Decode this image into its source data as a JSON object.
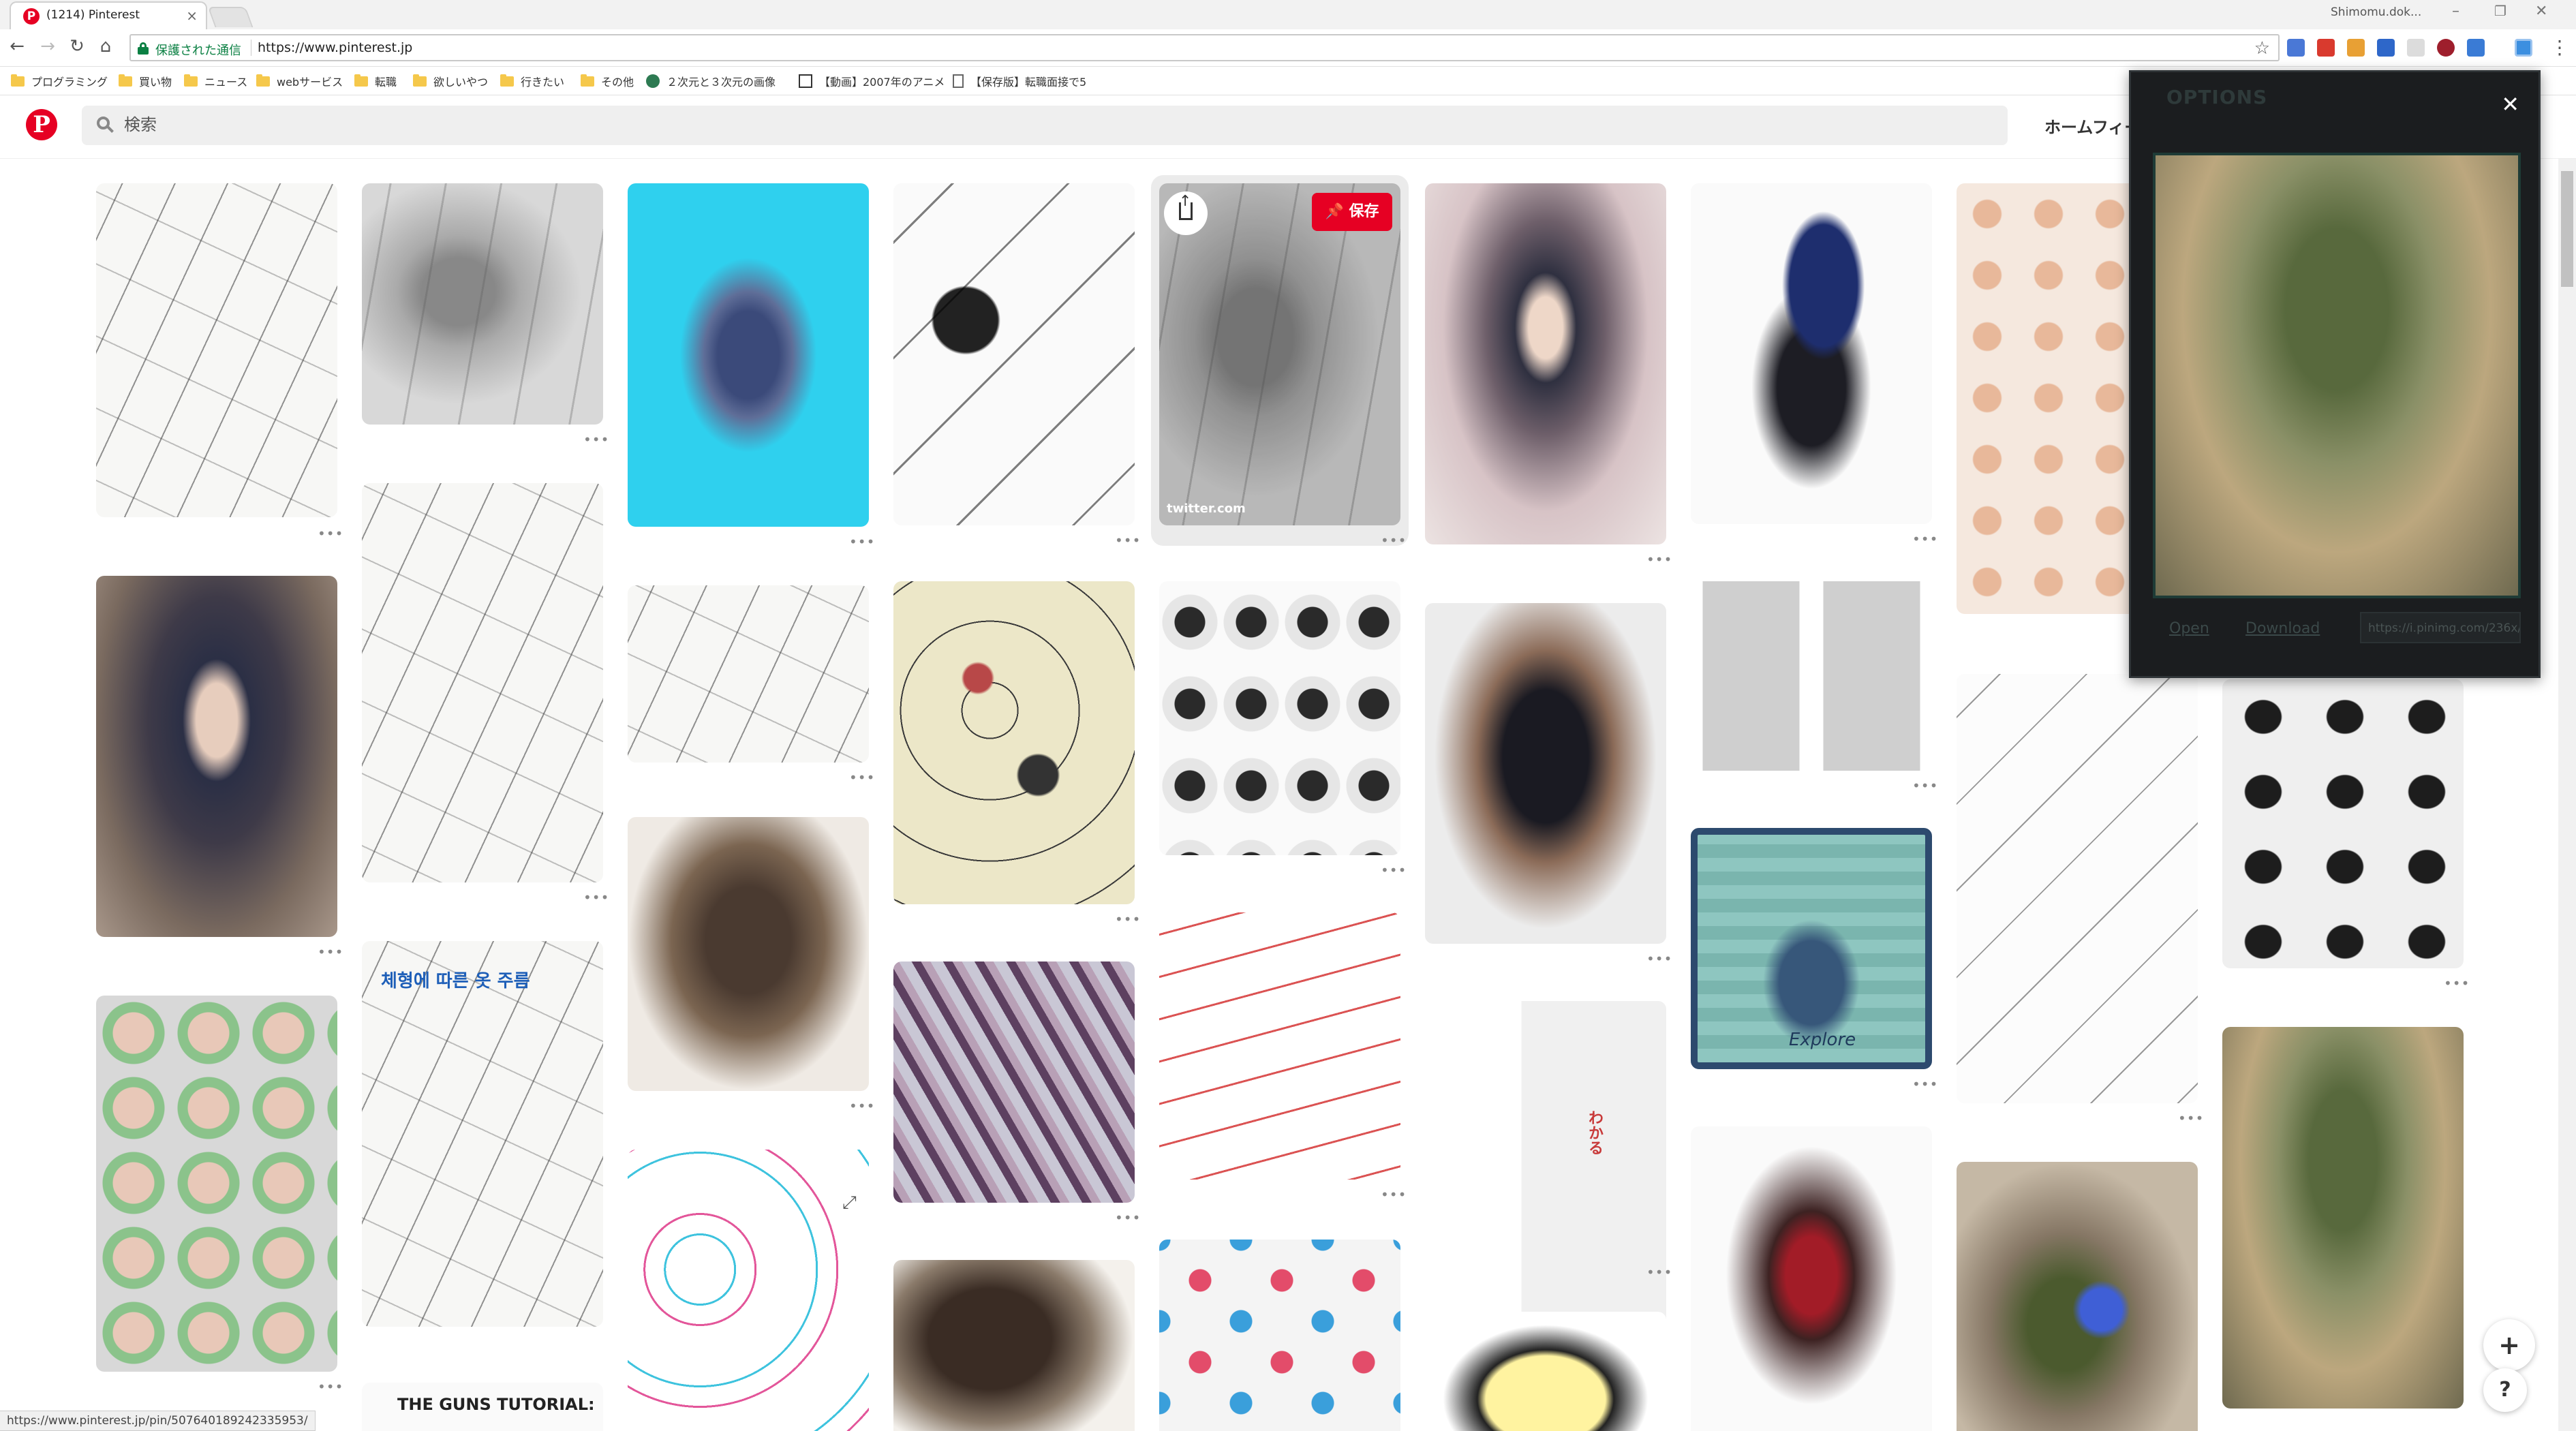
{
  "browser": {
    "tab_title": "(1214) Pinterest",
    "profile_name": "Shimomu.dok...",
    "secure_label": "保護された通信",
    "url": "https://www.pinterest.jp",
    "status_url": "https://www.pinterest.jp/pin/507640189242335953/"
  },
  "bookmarks": [
    {
      "label": "プログラミング",
      "icon": "folder-icon"
    },
    {
      "label": "買い物",
      "icon": "folder-icon"
    },
    {
      "label": "ニュース",
      "icon": "folder-icon"
    },
    {
      "label": "webサービス",
      "icon": "folder-icon"
    },
    {
      "label": "転職",
      "icon": "folder-icon"
    },
    {
      "label": "欲しいやつ",
      "icon": "folder-icon"
    },
    {
      "label": "行きたい",
      "icon": "folder-icon"
    },
    {
      "label": "その他",
      "icon": "folder-icon"
    },
    {
      "label": "２次元と３次元の画像",
      "icon": "site-icon"
    },
    {
      "label": "【動画】2007年のアニメ",
      "icon": "site-icon"
    },
    {
      "label": "【保存版】転職面接で5",
      "icon": "page-icon"
    }
  ],
  "pinterest": {
    "search_placeholder": "検索",
    "home_feed": "ホームフィード",
    "save_label": "保存",
    "pin_source": "twitter.com",
    "more_label": "•••",
    "add_label": "+",
    "help_label": "?"
  },
  "pins": {
    "guns_title": "THE GUNS TUTORIAL:",
    "korean_title": "체형에 따른 옷 주름",
    "explore_label": "Explore",
    "wakaru_label": "わかる"
  },
  "options": {
    "title": "OPTIONS",
    "open_label": "Open",
    "download_label": "Download",
    "image_url": "https://i.pinimg.com/236x/7..."
  }
}
